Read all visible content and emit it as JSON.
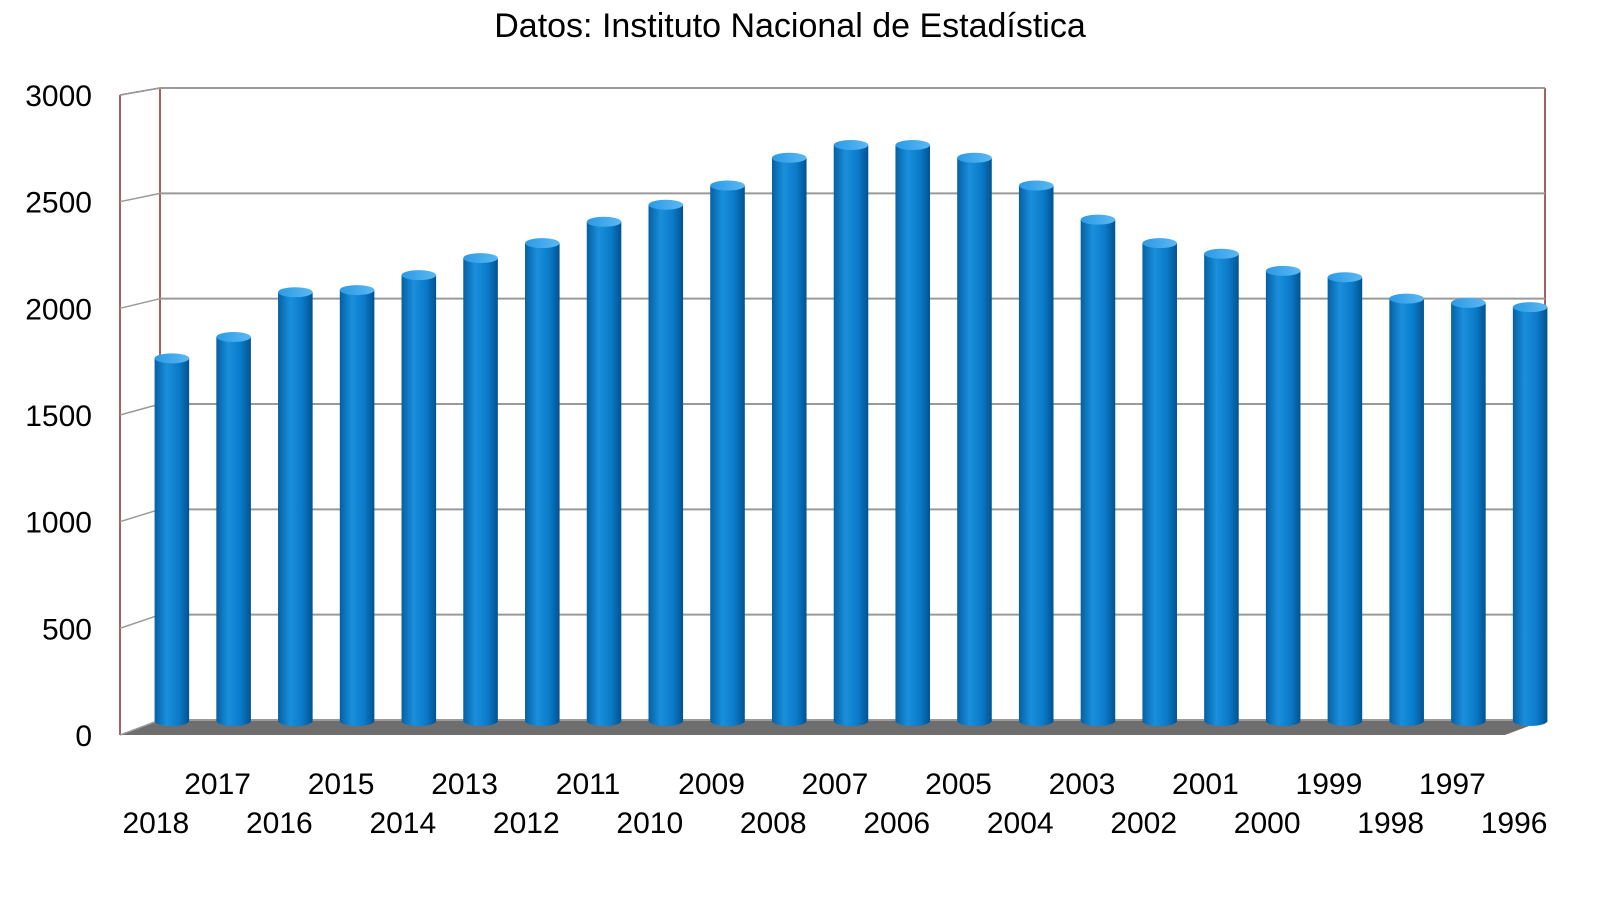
{
  "chart_data": {
    "type": "bar",
    "title": "Datos: Instituto Nacional de Estadística",
    "xlabel": "",
    "ylabel": "",
    "ylim": [
      0,
      3000
    ],
    "yticks": [
      0,
      500,
      1000,
      1500,
      2000,
      2500,
      3000
    ],
    "grid": true,
    "legend": "none",
    "bar_color": "#0a7bc9",
    "categories": [
      "2018",
      "2017",
      "2016",
      "2015",
      "2014",
      "2013",
      "2012",
      "2011",
      "2010",
      "2009",
      "2008",
      "2007",
      "2006",
      "2005",
      "2004",
      "2003",
      "2002",
      "2001",
      "2000",
      "1999",
      "1998",
      "1997",
      "1996"
    ],
    "values": [
      1700,
      1800,
      2010,
      2020,
      2090,
      2170,
      2240,
      2340,
      2420,
      2510,
      2640,
      2700,
      2700,
      2640,
      2510,
      2350,
      2240,
      2190,
      2110,
      2080,
      1980,
      1960,
      1940
    ]
  }
}
